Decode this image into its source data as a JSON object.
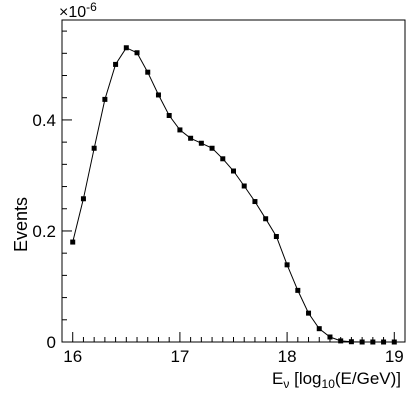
{
  "chart_data": {
    "type": "line",
    "xlabel": {
      "base": "E",
      "sub1": "ν",
      "pre": " [log",
      "sub2": "10",
      "post": "(E/GeV)]"
    },
    "ylabel": "Events",
    "multiplier": {
      "base": "×10",
      "exp": "-6"
    },
    "xlim": [
      15.9,
      19.1
    ],
    "ylim": [
      0,
      0.58
    ],
    "xticks": [
      "16",
      "17",
      "18",
      "19"
    ],
    "xtick_values": [
      16,
      17,
      18,
      19
    ],
    "yticks": [
      "0",
      "0.2",
      "0.4"
    ],
    "ytick_values": [
      0,
      0.2,
      0.4
    ],
    "grid": false,
    "marker": "square",
    "series": [
      {
        "x": [
          16.0,
          16.1,
          16.2,
          16.3,
          16.4,
          16.5,
          16.6,
          16.7,
          16.8,
          16.9,
          17.0,
          17.1,
          17.2,
          17.3,
          17.4,
          17.5,
          17.6,
          17.7,
          17.8,
          17.9,
          18.0,
          18.1,
          18.2,
          18.3,
          18.4,
          18.5,
          18.6,
          18.7,
          18.8,
          18.9,
          19.0
        ],
        "y": [
          0.18,
          0.258,
          0.349,
          0.437,
          0.5,
          0.53,
          0.521,
          0.486,
          0.445,
          0.408,
          0.382,
          0.367,
          0.358,
          0.349,
          0.33,
          0.308,
          0.281,
          0.253,
          0.222,
          0.19,
          0.139,
          0.093,
          0.052,
          0.024,
          0.009,
          0.002,
          0.0005,
          0.0,
          0.0,
          0.0,
          0.0
        ]
      }
    ]
  }
}
